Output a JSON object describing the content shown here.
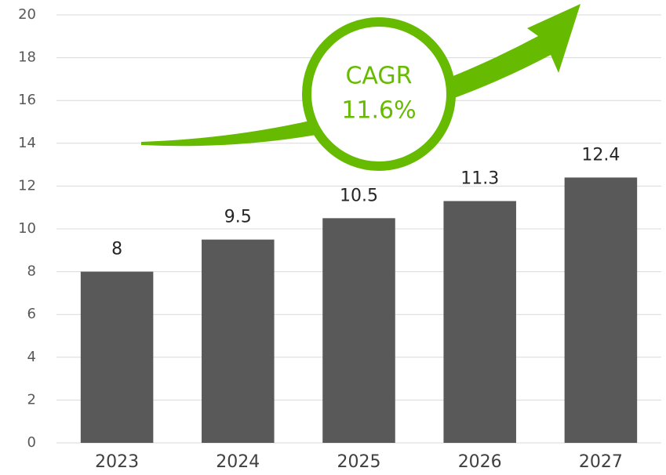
{
  "chart_data": {
    "type": "bar",
    "categories": [
      "2023",
      "2024",
      "2025",
      "2026",
      "2027"
    ],
    "values": [
      8,
      9.5,
      10.5,
      11.3,
      12.4
    ],
    "color": "#595959",
    "ylim": [
      0,
      20
    ],
    "yticks": [
      0,
      2,
      4,
      6,
      8,
      10,
      12,
      14,
      16,
      18,
      20
    ],
    "grid": true,
    "annotation": {
      "title": "CAGR",
      "value": "11.6%",
      "color": "#66bb00"
    }
  }
}
